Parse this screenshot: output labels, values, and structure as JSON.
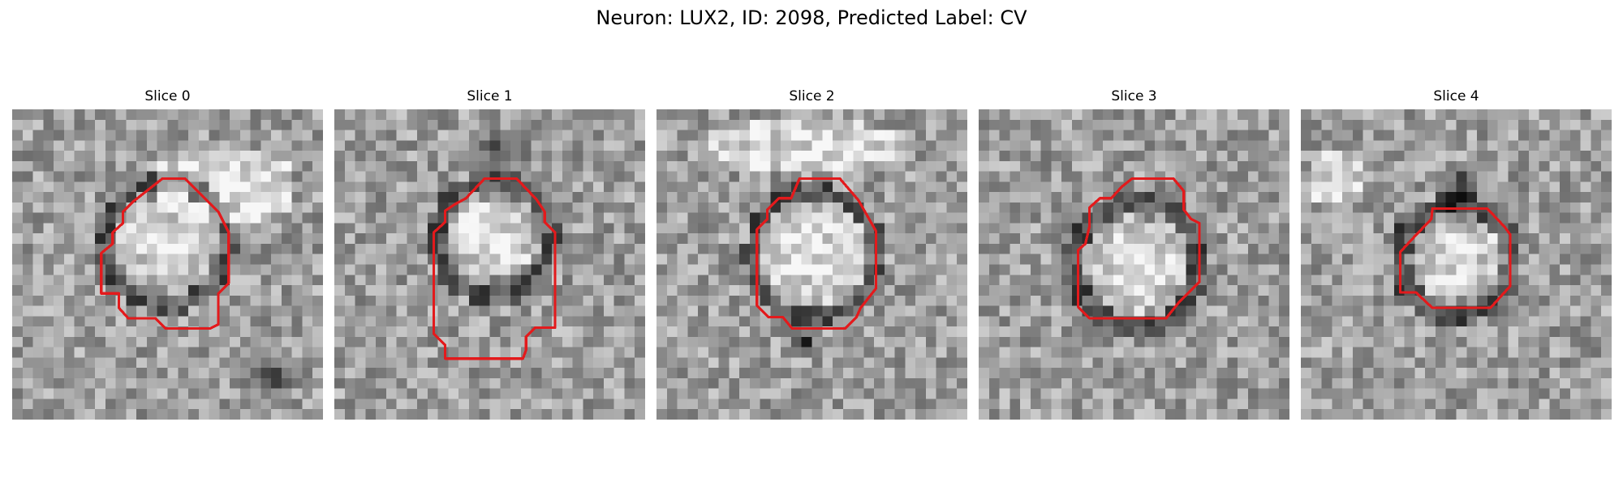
{
  "figure": {
    "title": "Neuron: LUX2, ID: 2098, Predicted Label: CV",
    "contour_color": "#e31a1c",
    "colormap": "grayscale"
  },
  "panels": [
    {
      "title": "Slice 0",
      "seed": 11,
      "shade": 0.0
    },
    {
      "title": "Slice 1",
      "seed": 27,
      "shade": 0.0
    },
    {
      "title": "Slice 2",
      "seed": 43,
      "shade": 0.0
    },
    {
      "title": "Slice 3",
      "seed": 59,
      "shade": 0.0
    },
    {
      "title": "Slice 4",
      "seed": 71,
      "shade": 0.0
    }
  ]
}
